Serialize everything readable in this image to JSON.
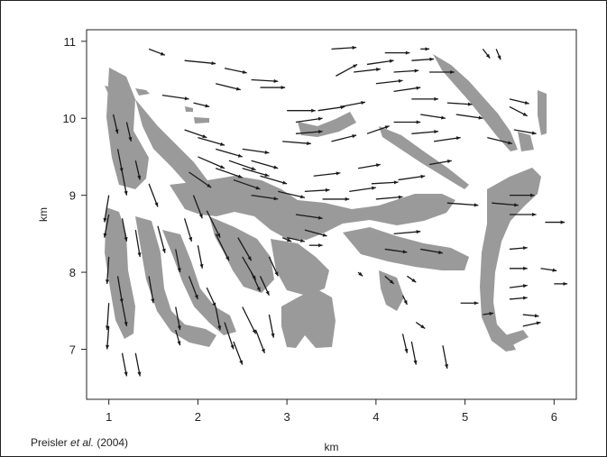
{
  "chart_data": {
    "type": "vector-field",
    "xlabel": "km",
    "ylabel": "km",
    "x_ticks": [
      "1",
      "2",
      "3",
      "4",
      "5",
      "6"
    ],
    "y_ticks": [
      "7",
      "8",
      "9",
      "10",
      "11"
    ],
    "xlim": [
      0.75,
      6.25
    ],
    "ylim": [
      6.35,
      11.15
    ],
    "grid": false,
    "colors": {
      "fuel": "#9a9a9a",
      "arrow": "#1a1a1a",
      "axis": "#222222"
    },
    "arrows": [
      {
        "x": 1.45,
        "y": 10.9,
        "dx": 0.18,
        "dy": -0.08
      },
      {
        "x": 1.85,
        "y": 10.75,
        "dx": 0.35,
        "dy": -0.04
      },
      {
        "x": 2.3,
        "y": 10.65,
        "dx": 0.25,
        "dy": -0.06
      },
      {
        "x": 2.6,
        "y": 10.5,
        "dx": 0.3,
        "dy": -0.02
      },
      {
        "x": 2.7,
        "y": 10.4,
        "dx": 0.28,
        "dy": 0
      },
      {
        "x": 2.2,
        "y": 10.45,
        "dx": 0.28,
        "dy": -0.08
      },
      {
        "x": 1.6,
        "y": 10.3,
        "dx": 0.3,
        "dy": -0.05
      },
      {
        "x": 1.95,
        "y": 10.2,
        "dx": 0.18,
        "dy": -0.05
      },
      {
        "x": 3.0,
        "y": 10.1,
        "dx": 0.32,
        "dy": 0
      },
      {
        "x": 3.35,
        "y": 10.1,
        "dx": 0.3,
        "dy": 0.05
      },
      {
        "x": 3.6,
        "y": 10.15,
        "dx": 0.28,
        "dy": 0.06
      },
      {
        "x": 3.1,
        "y": 9.95,
        "dx": 0.3,
        "dy": 0.05
      },
      {
        "x": 3.1,
        "y": 9.8,
        "dx": 0.3,
        "dy": 0.03
      },
      {
        "x": 2.95,
        "y": 9.7,
        "dx": 0.32,
        "dy": -0.03
      },
      {
        "x": 3.5,
        "y": 10.9,
        "dx": 0.28,
        "dy": 0.02
      },
      {
        "x": 4.1,
        "y": 10.85,
        "dx": 0.28,
        "dy": 0
      },
      {
        "x": 3.9,
        "y": 10.7,
        "dx": 0.3,
        "dy": 0.05
      },
      {
        "x": 3.75,
        "y": 10.6,
        "dx": 0.3,
        "dy": 0.04
      },
      {
        "x": 3.55,
        "y": 10.55,
        "dx": 0.24,
        "dy": 0.15
      },
      {
        "x": 4.2,
        "y": 10.6,
        "dx": 0.28,
        "dy": 0.02
      },
      {
        "x": 4.0,
        "y": 10.45,
        "dx": 0.3,
        "dy": 0.04
      },
      {
        "x": 4.2,
        "y": 10.35,
        "dx": 0.3,
        "dy": 0.05
      },
      {
        "x": 4.4,
        "y": 10.25,
        "dx": 0.3,
        "dy": 0
      },
      {
        "x": 4.8,
        "y": 10.2,
        "dx": 0.28,
        "dy": -0.02
      },
      {
        "x": 4.5,
        "y": 10.05,
        "dx": 0.28,
        "dy": -0.05
      },
      {
        "x": 4.9,
        "y": 10.05,
        "dx": 0.3,
        "dy": -0.05
      },
      {
        "x": 4.2,
        "y": 9.95,
        "dx": 0.3,
        "dy": 0
      },
      {
        "x": 4.4,
        "y": 9.8,
        "dx": 0.3,
        "dy": 0.03
      },
      {
        "x": 3.9,
        "y": 9.8,
        "dx": 0.25,
        "dy": 0.1
      },
      {
        "x": 3.5,
        "y": 9.7,
        "dx": 0.28,
        "dy": 0.08
      },
      {
        "x": 4.65,
        "y": 9.7,
        "dx": 0.3,
        "dy": 0.05
      },
      {
        "x": 5.25,
        "y": 9.75,
        "dx": 0.28,
        "dy": -0.08
      },
      {
        "x": 5.55,
        "y": 9.85,
        "dx": 0.25,
        "dy": -0.05
      },
      {
        "x": 5.5,
        "y": 10.15,
        "dx": 0.2,
        "dy": -0.12
      },
      {
        "x": 5.5,
        "y": 10.25,
        "dx": 0.22,
        "dy": -0.06
      },
      {
        "x": 5.2,
        "y": 10.9,
        "dx": 0.08,
        "dy": -0.12
      },
      {
        "x": 5.35,
        "y": 10.9,
        "dx": 0.05,
        "dy": -0.14
      },
      {
        "x": 4.5,
        "y": 10.9,
        "dx": 0.1,
        "dy": 0
      },
      {
        "x": 4.4,
        "y": 10.75,
        "dx": 0.25,
        "dy": 0.02
      },
      {
        "x": 4.6,
        "y": 10.6,
        "dx": 0.28,
        "dy": 0
      },
      {
        "x": 1.85,
        "y": 9.85,
        "dx": 0.25,
        "dy": -0.1
      },
      {
        "x": 2.0,
        "y": 9.75,
        "dx": 0.3,
        "dy": -0.1
      },
      {
        "x": 2.2,
        "y": 9.6,
        "dx": 0.3,
        "dy": -0.1
      },
      {
        "x": 2.5,
        "y": 9.6,
        "dx": 0.3,
        "dy": -0.05
      },
      {
        "x": 2.35,
        "y": 9.45,
        "dx": 0.3,
        "dy": -0.12
      },
      {
        "x": 2.6,
        "y": 9.45,
        "dx": 0.3,
        "dy": -0.1
      },
      {
        "x": 2.2,
        "y": 9.35,
        "dx": 0.3,
        "dy": -0.12
      },
      {
        "x": 2.0,
        "y": 9.5,
        "dx": 0.3,
        "dy": -0.15
      },
      {
        "x": 1.9,
        "y": 9.3,
        "dx": 0.25,
        "dy": -0.2
      },
      {
        "x": 2.5,
        "y": 9.35,
        "dx": 0.3,
        "dy": -0.1
      },
      {
        "x": 2.7,
        "y": 9.25,
        "dx": 0.3,
        "dy": -0.1
      },
      {
        "x": 2.4,
        "y": 9.2,
        "dx": 0.3,
        "dy": -0.12
      },
      {
        "x": 2.6,
        "y": 9.0,
        "dx": 0.3,
        "dy": -0.05
      },
      {
        "x": 2.9,
        "y": 9.05,
        "dx": 0.3,
        "dy": -0.08
      },
      {
        "x": 3.3,
        "y": 9.25,
        "dx": 0.3,
        "dy": 0.04
      },
      {
        "x": 3.2,
        "y": 9.05,
        "dx": 0.28,
        "dy": 0.02
      },
      {
        "x": 3.4,
        "y": 8.95,
        "dx": 0.3,
        "dy": 0
      },
      {
        "x": 3.7,
        "y": 9.05,
        "dx": 0.3,
        "dy": 0.05
      },
      {
        "x": 3.8,
        "y": 9.35,
        "dx": 0.25,
        "dy": 0.05
      },
      {
        "x": 3.95,
        "y": 9.15,
        "dx": 0.3,
        "dy": 0.02
      },
      {
        "x": 4.0,
        "y": 8.95,
        "dx": 0.3,
        "dy": 0.03
      },
      {
        "x": 4.25,
        "y": 9.2,
        "dx": 0.3,
        "dy": 0.05
      },
      {
        "x": 4.6,
        "y": 9.4,
        "dx": 0.25,
        "dy": 0.05
      },
      {
        "x": 4.8,
        "y": 8.9,
        "dx": 0.35,
        "dy": -0.03
      },
      {
        "x": 5.3,
        "y": 8.9,
        "dx": 0.3,
        "dy": -0.03
      },
      {
        "x": 5.5,
        "y": 9.0,
        "dx": 0.28,
        "dy": 0
      },
      {
        "x": 5.5,
        "y": 8.75,
        "dx": 0.3,
        "dy": 0
      },
      {
        "x": 5.9,
        "y": 8.65,
        "dx": 0.22,
        "dy": 0
      },
      {
        "x": 5.5,
        "y": 8.3,
        "dx": 0.2,
        "dy": 0.02
      },
      {
        "x": 5.5,
        "y": 8.05,
        "dx": 0.2,
        "dy": 0
      },
      {
        "x": 5.85,
        "y": 8.05,
        "dx": 0.18,
        "dy": -0.03
      },
      {
        "x": 6.0,
        "y": 7.85,
        "dx": 0.15,
        "dy": 0
      },
      {
        "x": 5.5,
        "y": 7.8,
        "dx": 0.2,
        "dy": 0.03
      },
      {
        "x": 5.5,
        "y": 7.65,
        "dx": 0.2,
        "dy": 0.02
      },
      {
        "x": 5.65,
        "y": 7.45,
        "dx": 0.18,
        "dy": -0.02
      },
      {
        "x": 5.65,
        "y": 7.3,
        "dx": 0.2,
        "dy": 0.05
      },
      {
        "x": 5.2,
        "y": 7.45,
        "dx": 0.12,
        "dy": 0.02
      },
      {
        "x": 4.95,
        "y": 7.6,
        "dx": 0.2,
        "dy": 0
      },
      {
        "x": 4.45,
        "y": 7.35,
        "dx": 0.1,
        "dy": -0.08
      },
      {
        "x": 3.1,
        "y": 8.75,
        "dx": 0.3,
        "dy": -0.05
      },
      {
        "x": 3.2,
        "y": 8.55,
        "dx": 0.25,
        "dy": -0.08
      },
      {
        "x": 3.0,
        "y": 8.45,
        "dx": 0.2,
        "dy": -0.05
      },
      {
        "x": 3.25,
        "y": 8.35,
        "dx": 0.15,
        "dy": 0
      },
      {
        "x": 4.1,
        "y": 8.3,
        "dx": 0.25,
        "dy": -0.04
      },
      {
        "x": 4.2,
        "y": 8.5,
        "dx": 0.3,
        "dy": 0.03
      },
      {
        "x": 4.5,
        "y": 8.3,
        "dx": 0.25,
        "dy": -0.05
      },
      {
        "x": 4.1,
        "y": 7.95,
        "dx": 0.1,
        "dy": -0.1
      },
      {
        "x": 4.35,
        "y": 7.95,
        "dx": 0.1,
        "dy": -0.08
      },
      {
        "x": 4.3,
        "y": 7.7,
        "dx": 0.05,
        "dy": -0.12
      },
      {
        "x": 4.3,
        "y": 7.2,
        "dx": 0.05,
        "dy": -0.25
      },
      {
        "x": 4.4,
        "y": 7.1,
        "dx": 0.05,
        "dy": -0.3
      },
      {
        "x": 4.75,
        "y": 7.05,
        "dx": 0.05,
        "dy": -0.3
      },
      {
        "x": 3.8,
        "y": 8.0,
        "dx": 0.05,
        "dy": -0.05
      },
      {
        "x": 1.05,
        "y": 10.05,
        "dx": 0.05,
        "dy": -0.25
      },
      {
        "x": 1.2,
        "y": 9.95,
        "dx": 0.05,
        "dy": -0.25
      },
      {
        "x": 1.1,
        "y": 9.6,
        "dx": 0.05,
        "dy": -0.3
      },
      {
        "x": 1.15,
        "y": 9.3,
        "dx": 0.05,
        "dy": -0.3
      },
      {
        "x": 1.0,
        "y": 9.0,
        "dx": -0.05,
        "dy": -0.35
      },
      {
        "x": 1.3,
        "y": 9.45,
        "dx": 0.05,
        "dy": -0.25
      },
      {
        "x": 1.45,
        "y": 9.15,
        "dx": 0.1,
        "dy": -0.3
      },
      {
        "x": 1.0,
        "y": 8.75,
        "dx": -0.05,
        "dy": -0.3
      },
      {
        "x": 1.15,
        "y": 8.7,
        "dx": 0.05,
        "dy": -0.3
      },
      {
        "x": 1.3,
        "y": 8.55,
        "dx": 0.05,
        "dy": -0.35
      },
      {
        "x": 1.55,
        "y": 8.6,
        "dx": 0.08,
        "dy": -0.35
      },
      {
        "x": 1.85,
        "y": 8.7,
        "dx": 0.08,
        "dy": -0.3
      },
      {
        "x": 1.95,
        "y": 9.0,
        "dx": 0.1,
        "dy": -0.3
      },
      {
        "x": 2.1,
        "y": 8.8,
        "dx": 0.15,
        "dy": -0.35
      },
      {
        "x": 2.2,
        "y": 8.5,
        "dx": 0.15,
        "dy": -0.35
      },
      {
        "x": 2.45,
        "y": 8.45,
        "dx": 0.15,
        "dy": -0.3
      },
      {
        "x": 2.5,
        "y": 8.2,
        "dx": 0.15,
        "dy": -0.3
      },
      {
        "x": 2.6,
        "y": 8.0,
        "dx": 0.1,
        "dy": -0.25
      },
      {
        "x": 2.8,
        "y": 8.2,
        "dx": 0.1,
        "dy": -0.25
      },
      {
        "x": 2.0,
        "y": 8.35,
        "dx": 0.05,
        "dy": -0.3
      },
      {
        "x": 1.75,
        "y": 8.3,
        "dx": 0.05,
        "dy": -0.3
      },
      {
        "x": 1.9,
        "y": 7.95,
        "dx": 0.1,
        "dy": -0.3
      },
      {
        "x": 2.1,
        "y": 7.8,
        "dx": 0.1,
        "dy": -0.25
      },
      {
        "x": 1.0,
        "y": 8.2,
        "dx": -0.02,
        "dy": -0.35
      },
      {
        "x": 1.1,
        "y": 7.95,
        "dx": 0.05,
        "dy": -0.35
      },
      {
        "x": 1.45,
        "y": 7.95,
        "dx": 0.05,
        "dy": -0.35
      },
      {
        "x": 1.0,
        "y": 7.6,
        "dx": -0.02,
        "dy": -0.35
      },
      {
        "x": 1.15,
        "y": 7.6,
        "dx": 0.05,
        "dy": -0.3
      },
      {
        "x": 1.0,
        "y": 7.3,
        "dx": -0.02,
        "dy": -0.3
      },
      {
        "x": 1.75,
        "y": 7.55,
        "dx": 0.05,
        "dy": -0.3
      },
      {
        "x": 2.2,
        "y": 7.55,
        "dx": 0.05,
        "dy": -0.3
      },
      {
        "x": 2.3,
        "y": 7.35,
        "dx": 0.1,
        "dy": -0.35
      },
      {
        "x": 2.4,
        "y": 7.1,
        "dx": 0.1,
        "dy": -0.3
      },
      {
        "x": 2.5,
        "y": 7.55,
        "dx": 0.15,
        "dy": -0.35
      },
      {
        "x": 2.65,
        "y": 7.25,
        "dx": 0.1,
        "dy": -0.3
      },
      {
        "x": 1.15,
        "y": 6.95,
        "dx": 0.05,
        "dy": -0.3
      },
      {
        "x": 1.3,
        "y": 6.95,
        "dx": 0.05,
        "dy": -0.3
      },
      {
        "x": 2.8,
        "y": 7.45,
        "dx": 0.05,
        "dy": -0.3
      },
      {
        "x": 1.75,
        "y": 7.25,
        "dx": 0.05,
        "dy": -0.2
      },
      {
        "x": 2.7,
        "y": 7.95,
        "dx": 0.1,
        "dy": -0.25
      },
      {
        "x": 2.95,
        "y": 8.45,
        "dx": 0.1,
        "dy": -0.05
      }
    ]
  },
  "credit": {
    "prefix": "Preisler ",
    "et_al": "et al.",
    "suffix": " (2004)"
  }
}
